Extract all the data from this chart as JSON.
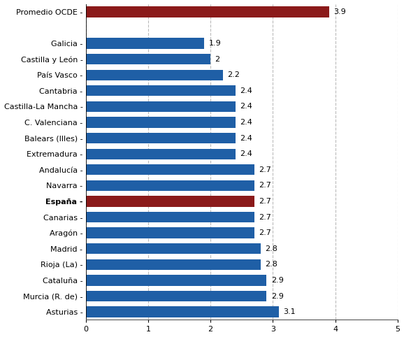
{
  "categories": [
    "Promedio OCDE",
    "",
    "Galicia",
    "Castilla y León",
    "País Vasco",
    "Cantabria",
    "Castilla-La Mancha",
    "C. Valenciana",
    "Balears (Illes)",
    "Extremadura",
    "Andalucía",
    "Navarra",
    "España",
    "Canarias",
    "Aragón",
    "Madrid",
    "Rioja (La)",
    "Cataluña",
    "Murcia (R. de)",
    "Asturias"
  ],
  "values": [
    3.9,
    0,
    1.9,
    2.0,
    2.2,
    2.4,
    2.4,
    2.4,
    2.4,
    2.4,
    2.7,
    2.7,
    2.7,
    2.7,
    2.7,
    2.8,
    2.8,
    2.9,
    2.9,
    3.1
  ],
  "value_labels": [
    "3.9",
    "",
    "1.9",
    "2",
    "2.2",
    "2.4",
    "2.4",
    "2.4",
    "2.4",
    "2.4",
    "2.7",
    "2.7",
    "2.7",
    "2.7",
    "2.7",
    "2.8",
    "2.8",
    "2.9",
    "2.9",
    "3.1"
  ],
  "colors": [
    "#8b1a1a",
    "#ffffff",
    "#1f5fa6",
    "#1f5fa6",
    "#1f5fa6",
    "#1f5fa6",
    "#1f5fa6",
    "#1f5fa6",
    "#1f5fa6",
    "#1f5fa6",
    "#1f5fa6",
    "#1f5fa6",
    "#8b1a1a",
    "#1f5fa6",
    "#1f5fa6",
    "#1f5fa6",
    "#1f5fa6",
    "#1f5fa6",
    "#1f5fa6",
    "#1f5fa6"
  ],
  "bold_labels": [
    "España"
  ],
  "xlim": [
    0,
    5
  ],
  "xticks": [
    0,
    1,
    2,
    3,
    4,
    5
  ],
  "grid_color": "#bbbbbb",
  "bg_color": "#ffffff",
  "label_fontsize": 8.0,
  "value_fontsize": 8.0,
  "bar_height": 0.68
}
